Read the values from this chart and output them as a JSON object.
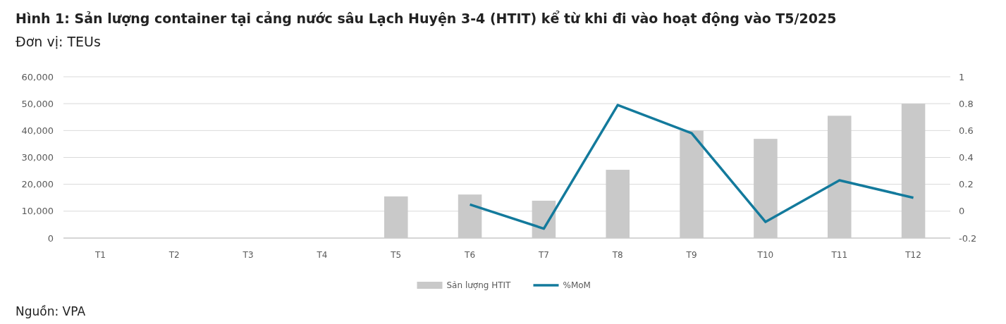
{
  "chart_data": {
    "type": "bar",
    "title": "Hình 1: Sản lượng container tại cảng nước sâu Lạch Huyện 3-4 (HTIT) kể từ khi đi vào hoạt động vào T5/2025",
    "subtitle": "Đơn vị: TEUs",
    "categories": [
      "T1",
      "T2",
      "T3",
      "T4",
      "T5",
      "T6",
      "T7",
      "T8",
      "T9",
      "T10",
      "T11",
      "T12"
    ],
    "series": [
      {
        "name": "Sản lượng HTIT",
        "color": "#c9c9c9",
        "values": [
          null,
          null,
          null,
          null,
          15500,
          16200,
          13900,
          25400,
          40000,
          36900,
          45500,
          50000
        ]
      },
      {
        "name": "%MoM",
        "type": "line",
        "axis": "y2",
        "color": "#137a9c",
        "values": [
          null,
          null,
          null,
          null,
          null,
          0.05,
          -0.13,
          0.79,
          0.58,
          -0.08,
          0.23,
          0.1
        ]
      }
    ],
    "ylim": [
      0,
      60000
    ],
    "yticks": [
      {
        "value": 0,
        "label": "0"
      },
      {
        "value": 10000,
        "label": "10,000"
      },
      {
        "value": 20000,
        "label": "20,000"
      },
      {
        "value": 30000,
        "label": "30,000"
      },
      {
        "value": 40000,
        "label": "40,000"
      },
      {
        "value": 50000,
        "label": "50,000"
      },
      {
        "value": 60000,
        "label": "60,000"
      }
    ],
    "y2lim": [
      -0.2,
      1
    ],
    "y2ticks": [
      -0.2,
      0,
      0.2,
      0.4,
      0.6,
      0.8,
      1
    ],
    "grid": "y",
    "legend": "bottom",
    "marker": "none",
    "line_style": "solid",
    "annotations": [
      "Nguồn: VPA"
    ]
  }
}
